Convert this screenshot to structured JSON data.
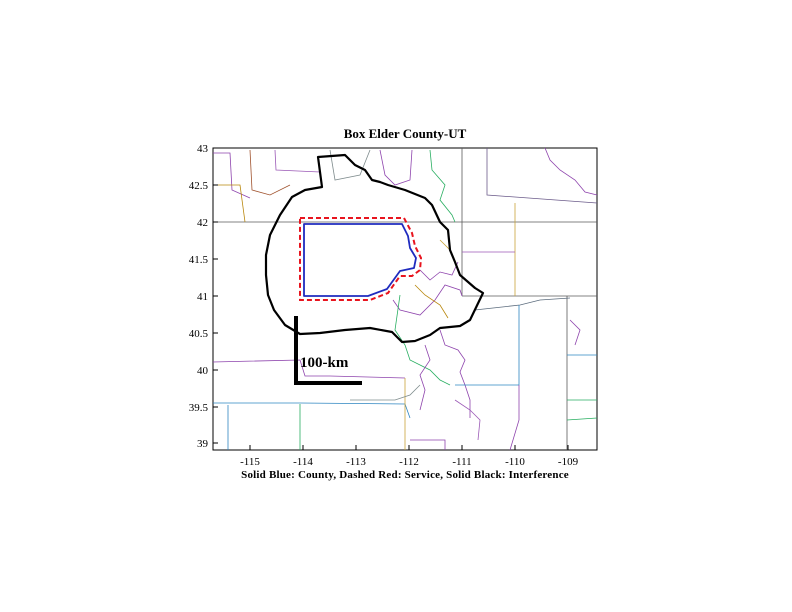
{
  "title": "Box Elder County-UT",
  "caption": "Solid Blue: County, Dashed Red: Service, Solid Black: Interference",
  "scale_bar_label": "100-km",
  "x_ticks": [
    "-115",
    "-114",
    "-113",
    "-112",
    "-111",
    "-110",
    "-109"
  ],
  "y_ticks": [
    "43",
    "42.5",
    "42",
    "41.5",
    "41",
    "40.5",
    "40",
    "39.5",
    "39"
  ],
  "legend_colors": {
    "county": "#1f2bbf",
    "service": "#e8141e",
    "interference": "#000000"
  }
}
